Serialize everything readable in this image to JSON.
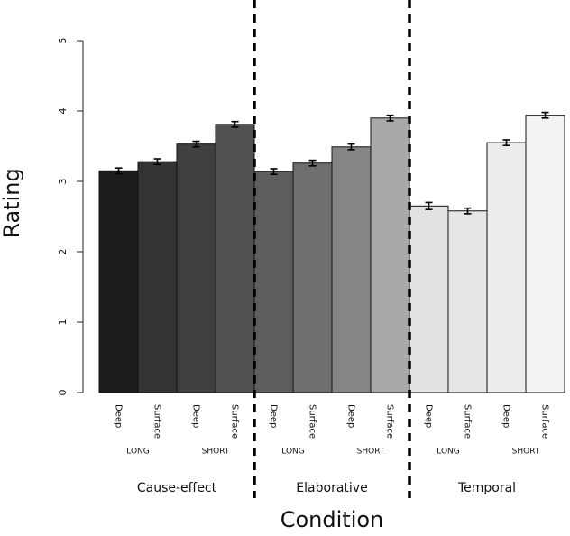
{
  "chart_data": {
    "type": "bar",
    "y_label": "Rating",
    "x_label": "Condition",
    "categories": [
      "Deep",
      "Surface",
      "Deep",
      "Surface",
      "Deep",
      "Surface",
      "Deep",
      "Surface",
      "Deep",
      "Surface",
      "Deep",
      "Surface"
    ],
    "values": [
      3.15,
      3.28,
      3.53,
      3.81,
      3.14,
      3.26,
      3.49,
      3.9,
      2.65,
      2.58,
      3.55,
      3.94
    ],
    "errors": [
      0.04,
      0.04,
      0.04,
      0.04,
      0.04,
      0.04,
      0.04,
      0.04,
      0.05,
      0.04,
      0.04,
      0.04
    ],
    "colors": [
      "#1c1c1c",
      "#333333",
      "#404040",
      "#525252",
      "#5e5e5e",
      "#6e6e6e",
      "#868686",
      "#a9a9a9",
      "#e2e2e2",
      "#e6e6e6",
      "#ececec",
      "#f3f3f3"
    ],
    "groups": [
      {
        "name": "Cause-effect",
        "subgroups": [
          "LONG",
          "SHORT"
        ]
      },
      {
        "name": "Elaborative",
        "subgroups": [
          "LONG",
          "SHORT"
        ]
      },
      {
        "name": "Temporal",
        "subgroups": [
          "LONG",
          "SHORT"
        ]
      }
    ],
    "ylim": [
      0,
      5
    ],
    "yticks": [
      0,
      1,
      2,
      3,
      4,
      5
    ]
  }
}
